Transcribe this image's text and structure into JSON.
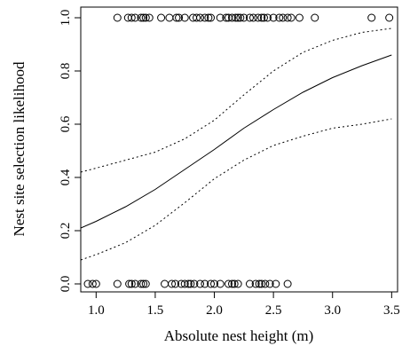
{
  "chart_data": {
    "type": "scatter",
    "title": "",
    "xlabel": "Absolute nest height (m)",
    "ylabel": "Nest site selection likelihood",
    "xlim": [
      0.87,
      3.55
    ],
    "ylim": [
      -0.03,
      1.04
    ],
    "x_ticks": [
      1.0,
      1.5,
      2.0,
      2.5,
      3.0,
      3.5
    ],
    "x_tick_labels": [
      "1.0",
      "1.5",
      "2.0",
      "2.5",
      "3.0",
      "3.5"
    ],
    "y_ticks": [
      0.0,
      0.2,
      0.4,
      0.6,
      0.8,
      1.0
    ],
    "y_tick_labels": [
      "0.0",
      "0.2",
      "0.4",
      "0.6",
      "0.8",
      "1.0"
    ],
    "grid": false,
    "legend": "none",
    "series": [
      {
        "type": "points",
        "marker": "open-circle",
        "points": [
          [
            1.18,
            1
          ],
          [
            1.27,
            1
          ],
          [
            1.3,
            1
          ],
          [
            1.33,
            1
          ],
          [
            1.38,
            1
          ],
          [
            1.4,
            1
          ],
          [
            1.42,
            1
          ],
          [
            1.45,
            1
          ],
          [
            1.55,
            1
          ],
          [
            1.62,
            1
          ],
          [
            1.68,
            1
          ],
          [
            1.7,
            1
          ],
          [
            1.75,
            1
          ],
          [
            1.82,
            1
          ],
          [
            1.85,
            1
          ],
          [
            1.88,
            1
          ],
          [
            1.92,
            1
          ],
          [
            1.95,
            1
          ],
          [
            1.97,
            1
          ],
          [
            2.05,
            1
          ],
          [
            2.1,
            1
          ],
          [
            2.12,
            1
          ],
          [
            2.15,
            1
          ],
          [
            2.18,
            1
          ],
          [
            2.2,
            1
          ],
          [
            2.22,
            1
          ],
          [
            2.25,
            1
          ],
          [
            2.3,
            1
          ],
          [
            2.33,
            1
          ],
          [
            2.37,
            1
          ],
          [
            2.4,
            1
          ],
          [
            2.42,
            1
          ],
          [
            2.45,
            1
          ],
          [
            2.5,
            1
          ],
          [
            2.55,
            1
          ],
          [
            2.58,
            1
          ],
          [
            2.62,
            1
          ],
          [
            2.65,
            1
          ],
          [
            2.72,
            1
          ],
          [
            2.85,
            1
          ],
          [
            3.33,
            1
          ],
          [
            3.48,
            1
          ],
          [
            0.93,
            0
          ],
          [
            0.97,
            0
          ],
          [
            1.0,
            0
          ],
          [
            1.18,
            0
          ],
          [
            1.28,
            0
          ],
          [
            1.3,
            0
          ],
          [
            1.33,
            0
          ],
          [
            1.38,
            0
          ],
          [
            1.4,
            0
          ],
          [
            1.42,
            0
          ],
          [
            1.58,
            0
          ],
          [
            1.64,
            0
          ],
          [
            1.67,
            0
          ],
          [
            1.72,
            0
          ],
          [
            1.75,
            0
          ],
          [
            1.78,
            0
          ],
          [
            1.8,
            0
          ],
          [
            1.83,
            0
          ],
          [
            1.88,
            0
          ],
          [
            1.92,
            0
          ],
          [
            1.97,
            0
          ],
          [
            2.0,
            0
          ],
          [
            2.05,
            0
          ],
          [
            2.12,
            0
          ],
          [
            2.15,
            0
          ],
          [
            2.17,
            0
          ],
          [
            2.2,
            0
          ],
          [
            2.3,
            0
          ],
          [
            2.35,
            0
          ],
          [
            2.38,
            0
          ],
          [
            2.4,
            0
          ],
          [
            2.43,
            0
          ],
          [
            2.47,
            0
          ],
          [
            2.52,
            0
          ],
          [
            2.62,
            0
          ]
        ]
      },
      {
        "type": "line",
        "style": "solid",
        "x": [
          0.87,
          1.0,
          1.25,
          1.5,
          1.75,
          2.0,
          2.25,
          2.5,
          2.75,
          3.0,
          3.25,
          3.5
        ],
        "y": [
          0.21,
          0.235,
          0.29,
          0.355,
          0.43,
          0.505,
          0.585,
          0.655,
          0.72,
          0.775,
          0.82,
          0.86
        ]
      },
      {
        "type": "line",
        "style": "dotted",
        "x": [
          0.87,
          1.0,
          1.25,
          1.5,
          1.75,
          2.0,
          2.25,
          2.5,
          2.75,
          3.0,
          3.25,
          3.5
        ],
        "y": [
          0.42,
          0.435,
          0.465,
          0.495,
          0.545,
          0.615,
          0.71,
          0.8,
          0.87,
          0.915,
          0.945,
          0.96
        ]
      },
      {
        "type": "line",
        "style": "dotted",
        "x": [
          0.87,
          1.0,
          1.25,
          1.5,
          1.75,
          2.0,
          2.25,
          2.5,
          2.75,
          3.0,
          3.25,
          3.5
        ],
        "y": [
          0.09,
          0.11,
          0.155,
          0.22,
          0.305,
          0.395,
          0.465,
          0.52,
          0.555,
          0.585,
          0.6,
          0.62
        ]
      }
    ]
  }
}
